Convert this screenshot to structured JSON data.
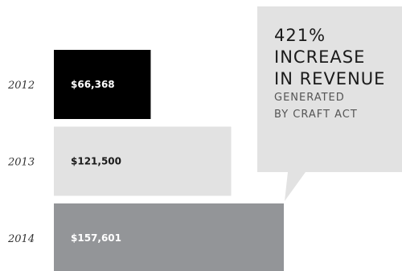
{
  "chart_data": {
    "type": "bar",
    "orientation": "horizontal",
    "categories": [
      "2012",
      "2013",
      "2014"
    ],
    "values": [
      66368,
      121500,
      157601
    ],
    "value_labels": [
      "$66,368",
      "$121,500",
      "$157,601"
    ],
    "bar_colors": [
      "#000000",
      "#e2e2e2",
      "#939598"
    ],
    "label_colors": [
      "#ffffff",
      "#1a1a1a",
      "#ffffff"
    ],
    "title": "",
    "xlabel": "",
    "ylabel": "",
    "xlim": [
      0,
      157601
    ],
    "grid": false,
    "legend": "none"
  },
  "callout": {
    "headline_line1": "421%",
    "headline_line2": "INCREASE",
    "headline_line3": "IN REVENUE",
    "sub_line1": "GENERATED",
    "sub_line2": "BY CRAFT ACT",
    "background": "#e2e2e2"
  }
}
